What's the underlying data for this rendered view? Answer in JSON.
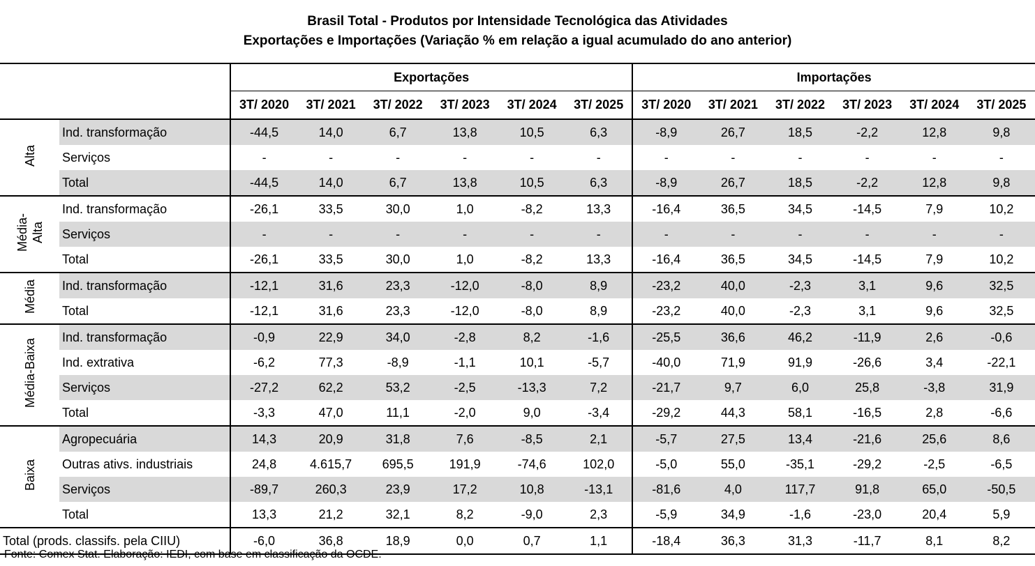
{
  "title": {
    "line1": "Brasil Total - Produtos por Intensidade Tecnológica das Atividades",
    "line2": "Exportações e Importações (Variação % em relação a igual acumulado do ano anterior)"
  },
  "headers": {
    "exports": "Exportações",
    "imports": "Importações",
    "periods": [
      "3T/ 2020",
      "3T/ 2021",
      "3T/ 2022",
      "3T/ 2023",
      "3T/ 2024",
      "3T/ 2025"
    ]
  },
  "groups": [
    {
      "name": "Alta",
      "rows": [
        {
          "label": "Ind. transformação",
          "exp": [
            "-44,5",
            "14,0",
            "6,7",
            "13,8",
            "10,5",
            "6,3"
          ],
          "imp": [
            "-8,9",
            "26,7",
            "18,5",
            "-2,2",
            "12,8",
            "9,8"
          ]
        },
        {
          "label": "Serviços",
          "exp": [
            "-",
            "-",
            "-",
            "-",
            "-",
            "-"
          ],
          "imp": [
            "-",
            "-",
            "-",
            "-",
            "-",
            "-"
          ]
        },
        {
          "label": "Total",
          "exp": [
            "-44,5",
            "14,0",
            "6,7",
            "13,8",
            "10,5",
            "6,3"
          ],
          "imp": [
            "-8,9",
            "26,7",
            "18,5",
            "-2,2",
            "12,8",
            "9,8"
          ]
        }
      ]
    },
    {
      "name": "Média-\nAlta",
      "rows": [
        {
          "label": "Ind. transformação",
          "exp": [
            "-26,1",
            "33,5",
            "30,0",
            "1,0",
            "-8,2",
            "13,3"
          ],
          "imp": [
            "-16,4",
            "36,5",
            "34,5",
            "-14,5",
            "7,9",
            "10,2"
          ]
        },
        {
          "label": "Serviços",
          "exp": [
            "-",
            "-",
            "-",
            "-",
            "-",
            "-"
          ],
          "imp": [
            "-",
            "-",
            "-",
            "-",
            "-",
            "-"
          ]
        },
        {
          "label": "Total",
          "exp": [
            "-26,1",
            "33,5",
            "30,0",
            "1,0",
            "-8,2",
            "13,3"
          ],
          "imp": [
            "-16,4",
            "36,5",
            "34,5",
            "-14,5",
            "7,9",
            "10,2"
          ]
        }
      ]
    },
    {
      "name": "Média",
      "rows": [
        {
          "label": "Ind. transformação",
          "exp": [
            "-12,1",
            "31,6",
            "23,3",
            "-12,0",
            "-8,0",
            "8,9"
          ],
          "imp": [
            "-23,2",
            "40,0",
            "-2,3",
            "3,1",
            "9,6",
            "32,5"
          ]
        },
        {
          "label": "Total",
          "exp": [
            "-12,1",
            "31,6",
            "23,3",
            "-12,0",
            "-8,0",
            "8,9"
          ],
          "imp": [
            "-23,2",
            "40,0",
            "-2,3",
            "3,1",
            "9,6",
            "32,5"
          ]
        }
      ]
    },
    {
      "name": "Média-Baixa",
      "rows": [
        {
          "label": "Ind. transformação",
          "exp": [
            "-0,9",
            "22,9",
            "34,0",
            "-2,8",
            "8,2",
            "-1,6"
          ],
          "imp": [
            "-25,5",
            "36,6",
            "46,2",
            "-11,9",
            "2,6",
            "-0,6"
          ]
        },
        {
          "label": "Ind. extrativa",
          "exp": [
            "-6,2",
            "77,3",
            "-8,9",
            "-1,1",
            "10,1",
            "-5,7"
          ],
          "imp": [
            "-40,0",
            "71,9",
            "91,9",
            "-26,6",
            "3,4",
            "-22,1"
          ]
        },
        {
          "label": "Serviços",
          "exp": [
            "-27,2",
            "62,2",
            "53,2",
            "-2,5",
            "-13,3",
            "7,2"
          ],
          "imp": [
            "-21,7",
            "9,7",
            "6,0",
            "25,8",
            "-3,8",
            "31,9"
          ]
        },
        {
          "label": "Total",
          "exp": [
            "-3,3",
            "47,0",
            "11,1",
            "-2,0",
            "9,0",
            "-3,4"
          ],
          "imp": [
            "-29,2",
            "44,3",
            "58,1",
            "-16,5",
            "2,8",
            "-6,6"
          ]
        }
      ]
    },
    {
      "name": "Baixa",
      "rows": [
        {
          "label": "Agropecuária",
          "exp": [
            "14,3",
            "20,9",
            "31,8",
            "7,6",
            "-8,5",
            "2,1"
          ],
          "imp": [
            "-5,7",
            "27,5",
            "13,4",
            "-21,6",
            "25,6",
            "8,6"
          ]
        },
        {
          "label": "Outras ativs. industriais",
          "exp": [
            "24,8",
            "4.615,7",
            "695,5",
            "191,9",
            "-74,6",
            "102,0"
          ],
          "imp": [
            "-5,0",
            "55,0",
            "-35,1",
            "-29,2",
            "-2,5",
            "-6,5"
          ]
        },
        {
          "label": "Serviços",
          "exp": [
            "-89,7",
            "260,3",
            "23,9",
            "17,2",
            "10,8",
            "-13,1"
          ],
          "imp": [
            "-81,6",
            "4,0",
            "117,7",
            "91,8",
            "65,0",
            "-50,5"
          ]
        },
        {
          "label": "Total",
          "exp": [
            "13,3",
            "21,2",
            "32,1",
            "8,2",
            "-9,0",
            "2,3"
          ],
          "imp": [
            "-5,9",
            "34,9",
            "-1,6",
            "-23,0",
            "20,4",
            "5,9"
          ]
        }
      ]
    }
  ],
  "total": {
    "label": "Total (prods. classifs. pela CIIU)",
    "exp": [
      "-6,0",
      "36,8",
      "18,9",
      "0,0",
      "0,7",
      "1,1"
    ],
    "imp": [
      "-18,4",
      "36,3",
      "31,3",
      "-11,7",
      "8,1",
      "8,2"
    ]
  },
  "source": "Fonte: Comex Stat. Elaboração: IEDI, com base em classificação da OCDE."
}
